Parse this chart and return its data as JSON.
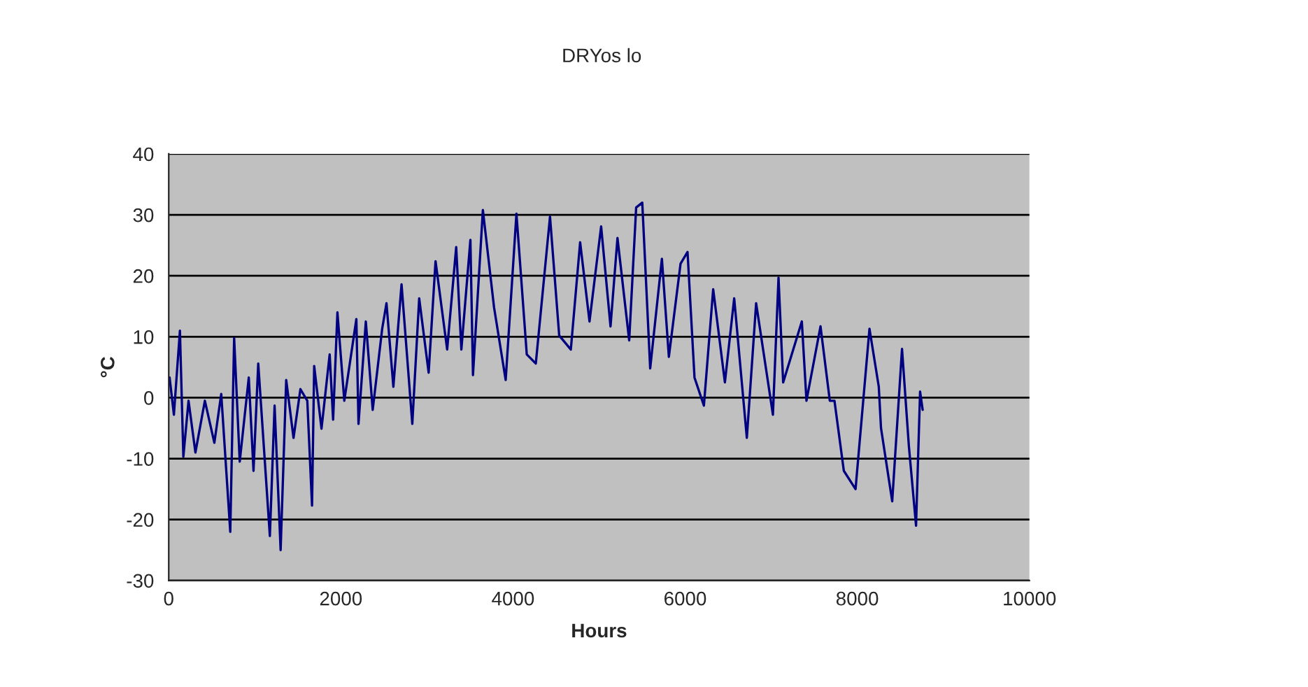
{
  "chart_data": {
    "type": "line",
    "title": "DRYos lo",
    "xlabel": "Hours",
    "ylabel": "°C",
    "x": [
      10,
      60,
      130,
      170,
      230,
      310,
      420,
      530,
      610,
      715,
      760,
      825,
      930,
      985,
      1040,
      1175,
      1230,
      1300,
      1365,
      1450,
      1530,
      1610,
      1665,
      1690,
      1775,
      1870,
      1910,
      1960,
      2040,
      2180,
      2205,
      2290,
      2370,
      2480,
      2530,
      2610,
      2705,
      2830,
      2910,
      3020,
      3100,
      3235,
      3340,
      3400,
      3505,
      3535,
      3650,
      3780,
      3915,
      4040,
      4160,
      4265,
      4430,
      4537,
      4672,
      4780,
      4889,
      5024,
      5133,
      5214,
      5350,
      5431,
      5502,
      5594,
      5730,
      5811,
      5947,
      6028,
      6109,
      6218,
      6326,
      6462,
      6570,
      6717,
      6825,
      7020,
      7085,
      7139,
      7356,
      7410,
      7573,
      7681,
      7735,
      7844,
      7980,
      8142,
      8250,
      8276,
      8406,
      8520,
      8600,
      8683,
      8730,
      8760
    ],
    "series": [
      {
        "color": "#000080",
        "values": [
          3.3,
          -2.8,
          11,
          -9.7,
          -0.5,
          -9,
          -0.5,
          -7.4,
          0.6,
          -22,
          9.8,
          -10.5,
          3.3,
          -12,
          5.6,
          -22.7,
          -1.3,
          -25,
          2.9,
          -6.6,
          1.4,
          -0.5,
          -17.7,
          5.2,
          -5.1,
          7.1,
          -3.6,
          14,
          -0.5,
          12.9,
          -4.3,
          12.5,
          -2,
          11.3,
          15.5,
          1.8,
          18.6,
          -4.3,
          16.3,
          4.1,
          22.4,
          7.9,
          24.7,
          7.9,
          25.9,
          3.7,
          30.8,
          14.8,
          2.9,
          30.2,
          7.1,
          5.6,
          29.7,
          10.2,
          7.9,
          25.5,
          12.5,
          28.1,
          11.7,
          26.2,
          9.4,
          31.2,
          32,
          4.8,
          22.8,
          6.7,
          22,
          23.9,
          3.3,
          -1.3,
          17.8,
          2.5,
          16.3,
          -6.6,
          15.5,
          -2.8,
          19.7,
          2.5,
          12.5,
          -0.5,
          11.7,
          -0.5,
          -0.5,
          -12,
          -15,
          11.3,
          1.8,
          -5,
          -17,
          8,
          -8,
          -21,
          1,
          -2
        ]
      }
    ],
    "xlim": [
      0,
      10000
    ],
    "xticks": [
      0,
      2000,
      4000,
      6000,
      8000,
      10000
    ],
    "ylim": [
      -30,
      40
    ],
    "yticks": [
      -30,
      -20,
      -10,
      0,
      10,
      20,
      30,
      40
    ],
    "grid": "y",
    "legend": false,
    "marker": "none",
    "line_style": "solid"
  }
}
